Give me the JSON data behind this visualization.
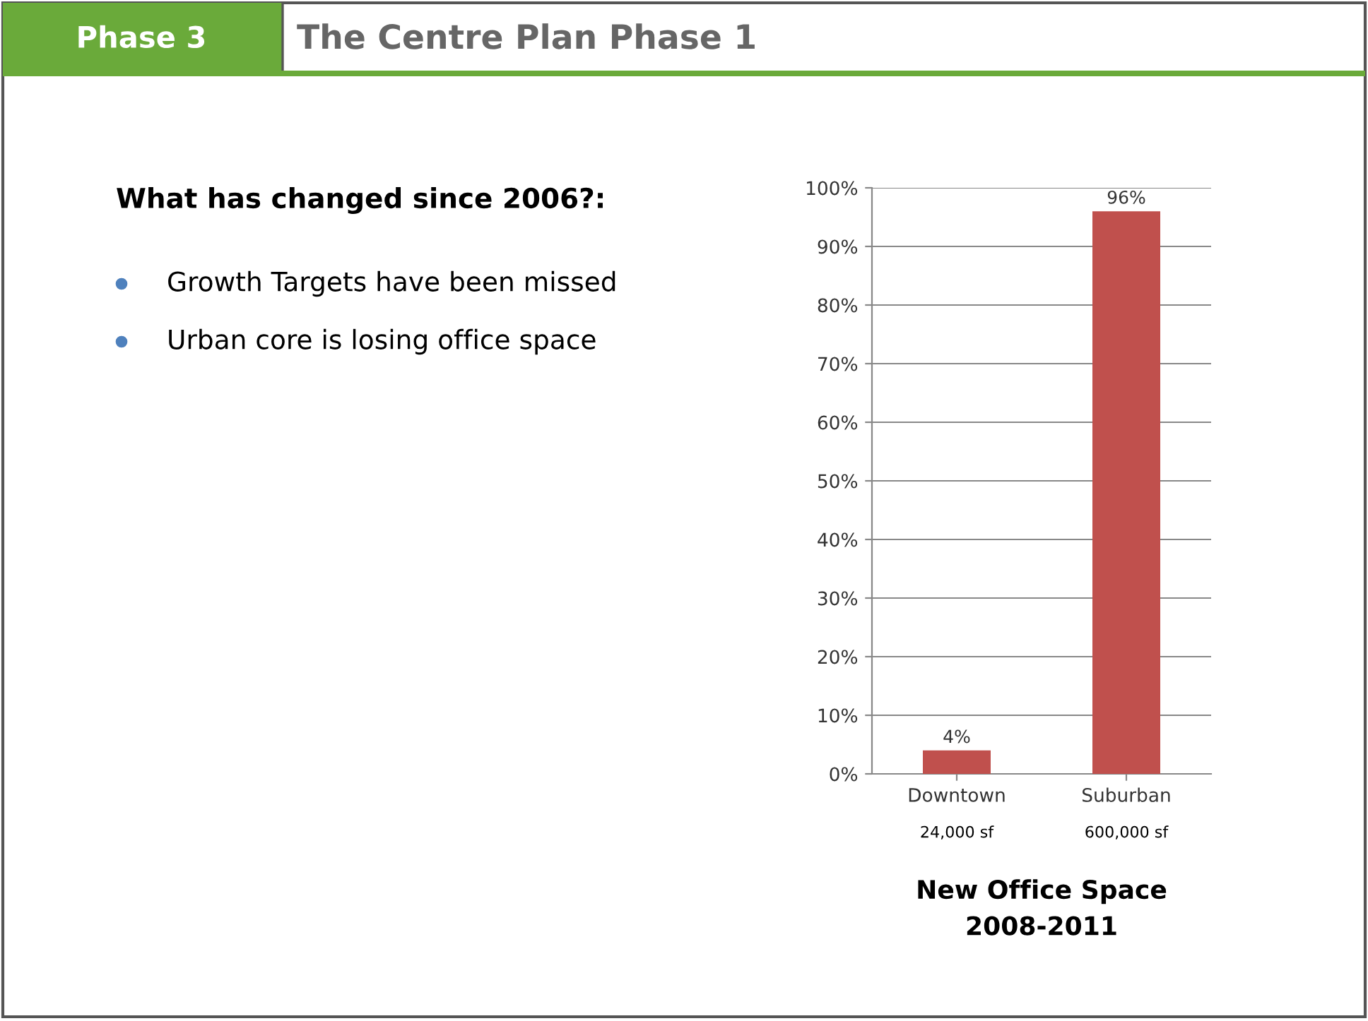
{
  "chart_data": {
    "type": "bar",
    "title": "New Office Space\n2008-2011",
    "categories": [
      "Downtown",
      "Suburban"
    ],
    "values": [
      4,
      96
    ],
    "value_labels": [
      "4%",
      "96%"
    ],
    "color": "#c0504d",
    "ylim": [
      0,
      100
    ],
    "yticks": [
      {
        "value": 0,
        "label": "0%"
      },
      {
        "value": 10,
        "label": "10%"
      },
      {
        "value": 20,
        "label": "20%"
      },
      {
        "value": 30,
        "label": "30%"
      },
      {
        "value": 40,
        "label": "40%"
      },
      {
        "value": 50,
        "label": "50%"
      },
      {
        "value": 60,
        "label": "60%"
      },
      {
        "value": 70,
        "label": "70%"
      },
      {
        "value": 80,
        "label": "80%"
      },
      {
        "value": 90,
        "label": "90%"
      },
      {
        "value": 100,
        "label": "100%"
      }
    ],
    "grid": "y",
    "annotations": [
      "Phase 3",
      "The Centre Plan Phase 1",
      "What has changed since 2006?:",
      "Growth Targets have been missed",
      "Urban core is losing office space",
      "24,000 sf",
      "600,000 sf"
    ]
  }
}
